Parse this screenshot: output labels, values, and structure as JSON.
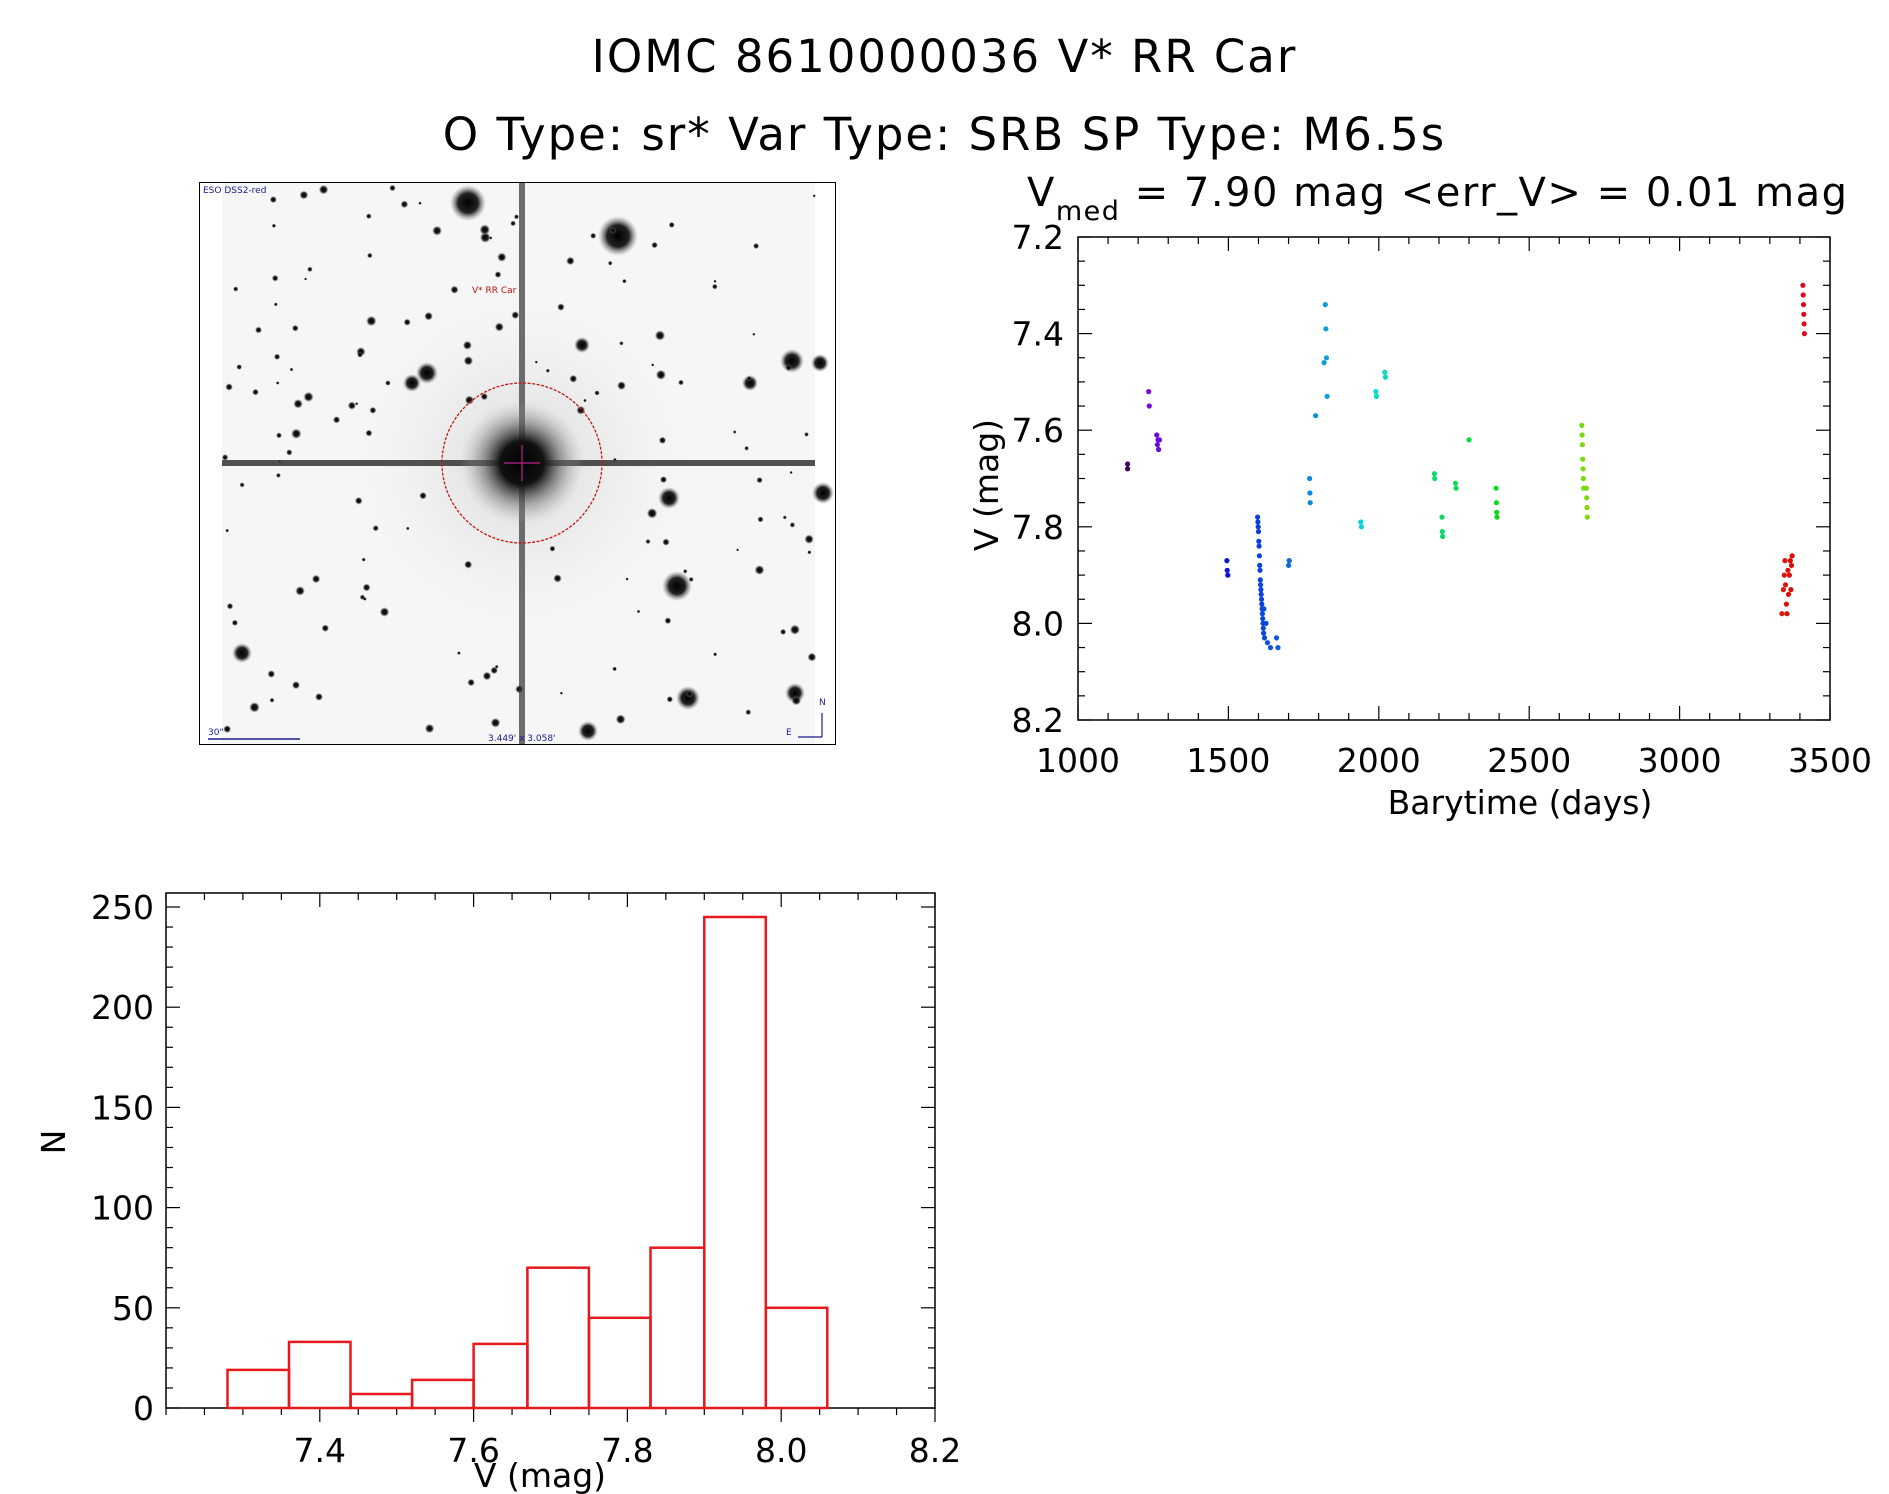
{
  "header": {
    "title": "IOMC 8610000036    V* RR Car",
    "subtitle": "O Type: sr*   Var Type: SRB   SP Type: M6.5s"
  },
  "sky_image": {
    "survey_label": "ESO DSS2-red",
    "target_label": "V* RR Car",
    "scale_label": "30\"",
    "fov_label": "3.449' x 3.058'",
    "north_label": "N",
    "east_label": "E"
  },
  "chart_data": [
    {
      "type": "scatter",
      "title": "V_med = 7.90 mag <err_V> = 0.01 mag",
      "title_main": "V",
      "title_sub": "med",
      "title_rest": " = 7.90 mag <err_V> = 0.01 mag",
      "xlabel": "Barytime (days)",
      "ylabel": "V (mag)",
      "xlim": [
        1000,
        3500
      ],
      "ylim": [
        8.2,
        7.2
      ],
      "inverted_y": true,
      "xticks": [
        "1000",
        "1500",
        "2000",
        "2500",
        "3000",
        "3500"
      ],
      "yticks": [
        "7.2",
        "7.4",
        "7.6",
        "7.8",
        "8.0",
        "8.2"
      ],
      "colored_by_time": true,
      "points": [
        [
          1165,
          7.67
        ],
        [
          1165,
          7.68
        ],
        [
          1235,
          7.52
        ],
        [
          1237,
          7.55
        ],
        [
          1262,
          7.61
        ],
        [
          1264,
          7.63
        ],
        [
          1266,
          7.62
        ],
        [
          1268,
          7.64
        ],
        [
          1271,
          7.62
        ],
        [
          1495,
          7.87
        ],
        [
          1496,
          7.89
        ],
        [
          1498,
          7.9
        ],
        [
          1597,
          7.78
        ],
        [
          1598,
          7.79
        ],
        [
          1599,
          7.8
        ],
        [
          1600,
          7.81
        ],
        [
          1601,
          7.83
        ],
        [
          1602,
          7.84
        ],
        [
          1603,
          7.86
        ],
        [
          1604,
          7.88
        ],
        [
          1605,
          7.89
        ],
        [
          1606,
          7.91
        ],
        [
          1607,
          7.92
        ],
        [
          1608,
          7.93
        ],
        [
          1609,
          7.94
        ],
        [
          1610,
          7.95
        ],
        [
          1611,
          7.96
        ],
        [
          1612,
          7.97
        ],
        [
          1613,
          7.98
        ],
        [
          1614,
          7.99
        ],
        [
          1615,
          8.0
        ],
        [
          1616,
          8.01
        ],
        [
          1617,
          8.02
        ],
        [
          1618,
          7.97
        ],
        [
          1620,
          8.03
        ],
        [
          1625,
          8.0
        ],
        [
          1630,
          8.04
        ],
        [
          1640,
          8.05
        ],
        [
          1660,
          8.03
        ],
        [
          1665,
          8.05
        ],
        [
          1700,
          7.88
        ],
        [
          1702,
          7.87
        ],
        [
          1770,
          7.7
        ],
        [
          1771,
          7.73
        ],
        [
          1772,
          7.75
        ],
        [
          1790,
          7.57
        ],
        [
          1818,
          7.46
        ],
        [
          1822,
          7.34
        ],
        [
          1824,
          7.39
        ],
        [
          1826,
          7.45
        ],
        [
          1828,
          7.53
        ],
        [
          1940,
          7.79
        ],
        [
          1942,
          7.8
        ],
        [
          1990,
          7.52
        ],
        [
          1992,
          7.53
        ],
        [
          2020,
          7.48
        ],
        [
          2022,
          7.49
        ],
        [
          2185,
          7.69
        ],
        [
          2186,
          7.7
        ],
        [
          2210,
          7.78
        ],
        [
          2211,
          7.81
        ],
        [
          2212,
          7.82
        ],
        [
          2255,
          7.71
        ],
        [
          2257,
          7.72
        ],
        [
          2300,
          7.62
        ],
        [
          2390,
          7.72
        ],
        [
          2391,
          7.75
        ],
        [
          2392,
          7.77
        ],
        [
          2393,
          7.78
        ],
        [
          2675,
          7.59
        ],
        [
          2676,
          7.61
        ],
        [
          2677,
          7.63
        ],
        [
          2678,
          7.66
        ],
        [
          2679,
          7.68
        ],
        [
          2680,
          7.7
        ],
        [
          2681,
          7.72
        ],
        [
          2690,
          7.72
        ],
        [
          2691,
          7.74
        ],
        [
          2692,
          7.76
        ],
        [
          2693,
          7.78
        ],
        [
          3340,
          7.98
        ],
        [
          3345,
          7.93
        ],
        [
          3348,
          7.9
        ],
        [
          3350,
          7.87
        ],
        [
          3352,
          7.92
        ],
        [
          3355,
          7.96
        ],
        [
          3357,
          7.98
        ],
        [
          3360,
          7.89
        ],
        [
          3362,
          7.94
        ],
        [
          3365,
          7.9
        ],
        [
          3368,
          7.87
        ],
        [
          3370,
          7.93
        ],
        [
          3372,
          7.88
        ],
        [
          3374,
          7.86
        ],
        [
          3410,
          7.3
        ],
        [
          3411,
          7.32
        ],
        [
          3412,
          7.34
        ],
        [
          3413,
          7.36
        ],
        [
          3414,
          7.38
        ],
        [
          3415,
          7.4
        ]
      ]
    },
    {
      "type": "bar",
      "subtype": "histogram",
      "xlabel": "V (mag)",
      "ylabel": "N",
      "xlim": [
        7.2,
        8.2
      ],
      "ylim": [
        0,
        260
      ],
      "xticks": [
        "7.4",
        "7.6",
        "7.8",
        "8.0",
        "8.2"
      ],
      "yticks": [
        "0",
        "50",
        "100",
        "150",
        "200",
        "250"
      ],
      "bin_edges": [
        7.28,
        7.36,
        7.44,
        7.52,
        7.6,
        7.67,
        7.75,
        7.83,
        7.9,
        7.98,
        8.06
      ],
      "values": [
        19,
        33,
        7,
        14,
        32,
        70,
        45,
        80,
        245,
        50
      ],
      "bar_color": "#e8181c"
    }
  ]
}
